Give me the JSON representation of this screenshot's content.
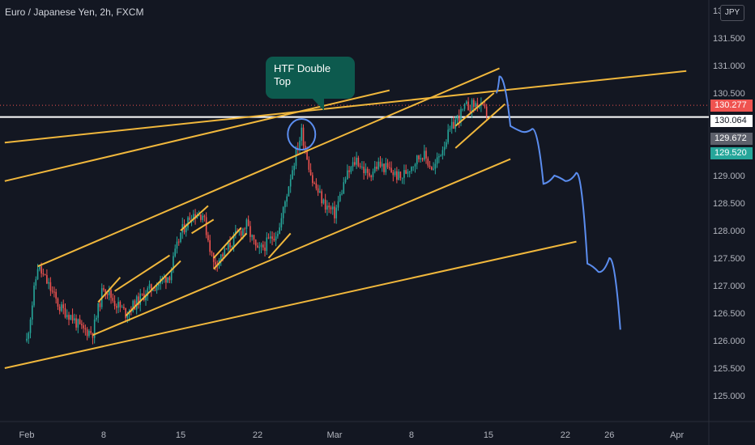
{
  "header": {
    "title": "Euro / Japanese Yen, 2h, FXCM"
  },
  "currency_button": {
    "label": "JPY"
  },
  "annotation": {
    "line1": "HTF Double",
    "line2": "Top"
  },
  "colors": {
    "background": "#131722",
    "up_candle": "#26a69a",
    "down_candle": "#ef5350",
    "trendline": "#f0b73c",
    "projection": "#5b8def",
    "annotation_bg": "#0d5a4e"
  },
  "price_badges": [
    {
      "value": "130.277",
      "price": 130.277,
      "bg": "#ef5350",
      "fg": "#ffffff"
    },
    {
      "value": "130.064",
      "price": 130.064,
      "bg": "#ffffff",
      "fg": "#131722"
    },
    {
      "value": "129.672",
      "price": 129.672,
      "bg": "#5d606b",
      "fg": "#ffffff"
    },
    {
      "value": "129.520",
      "price": 129.52,
      "bg": "#26a69a",
      "fg": "#ffffff"
    }
  ],
  "chart_data": {
    "type": "candlestick",
    "symbol": "Euro / Japanese Yen, 2h, FXCM",
    "y_ticks": [
      "131.500",
      "131.000",
      "130.500",
      "129.000",
      "128.500",
      "128.000",
      "127.500",
      "127.000",
      "126.500",
      "126.000",
      "125.500",
      "125.000"
    ],
    "y_top_partial": "13",
    "x_ticks": [
      "Feb",
      "8",
      "15",
      "22",
      "Mar",
      "8",
      "15",
      "22",
      "26",
      "Apr"
    ],
    "ylim": [
      124.6,
      131.9
    ],
    "price_path": [
      [
        "Feb 1",
        126.0
      ],
      [
        "Feb 2",
        127.35
      ],
      [
        "Feb 3",
        127.0
      ],
      [
        "Feb 4",
        126.6
      ],
      [
        "Feb 5",
        126.45
      ],
      [
        "Feb 6",
        126.2
      ],
      [
        "Feb 7",
        126.15
      ],
      [
        "Feb 8",
        127.0
      ],
      [
        "Feb 9",
        126.7
      ],
      [
        "Feb 10",
        126.5
      ],
      [
        "Feb 11",
        126.7
      ],
      [
        "Feb 12",
        126.9
      ],
      [
        "Feb 13",
        127.05
      ],
      [
        "Feb 14",
        127.2
      ],
      [
        "Feb 15",
        127.95
      ],
      [
        "Feb 16",
        128.3
      ],
      [
        "Feb 17",
        128.3
      ],
      [
        "Feb 18",
        127.4
      ],
      [
        "Feb 19",
        127.6
      ],
      [
        "Feb 20",
        127.9
      ],
      [
        "Feb 21",
        128.1
      ],
      [
        "Feb 22",
        127.6
      ],
      [
        "Feb 23",
        127.8
      ],
      [
        "Feb 24",
        128.05
      ],
      [
        "Feb 25",
        129.0
      ],
      [
        "Feb 26",
        129.8
      ],
      [
        "Feb 27",
        128.9
      ],
      [
        "Feb 28",
        128.5
      ],
      [
        "Mar 1",
        128.3
      ],
      [
        "Mar 2",
        128.95
      ],
      [
        "Mar 3",
        129.3
      ],
      [
        "Mar 4",
        129.0
      ],
      [
        "Mar 5",
        129.2
      ],
      [
        "Mar 6",
        129.1
      ],
      [
        "Mar 7",
        128.95
      ],
      [
        "Mar 8",
        129.2
      ],
      [
        "Mar 9",
        129.4
      ],
      [
        "Mar 10",
        129.1
      ],
      [
        "Mar 11",
        129.6
      ],
      [
        "Mar 12",
        130.0
      ],
      [
        "Mar 13",
        130.25
      ],
      [
        "Mar 14",
        130.3
      ],
      [
        "Mar 15",
        130.1
      ]
    ],
    "projection": [
      [
        "Mar 16",
        130.5
      ],
      [
        "Mar 16",
        130.8
      ],
      [
        "Mar 17",
        129.9
      ],
      [
        "Mar 18",
        129.8
      ],
      [
        "Mar 19",
        129.85
      ],
      [
        "Mar 20",
        128.85
      ],
      [
        "Mar 21",
        129.0
      ],
      [
        "Mar 22",
        128.9
      ],
      [
        "Mar 23",
        129.05
      ],
      [
        "Mar 24",
        127.4
      ],
      [
        "Mar 25",
        127.25
      ],
      [
        "Mar 26",
        127.5
      ],
      [
        "Mar 27",
        126.2
      ]
    ],
    "trendlines": [
      {
        "from": [
          "Feb 2",
          127.35
        ],
        "to": [
          "Mar 16",
          130.95
        ]
      },
      {
        "from": [
          "Feb 7",
          126.1
        ],
        "to": [
          "Mar 17",
          129.3
        ]
      },
      {
        "from": [
          "Jan 30",
          125.5
        ],
        "to": [
          "Mar 23",
          127.8
        ]
      },
      {
        "from": [
          "Jan 30",
          128.9
        ],
        "to": [
          "Mar 6",
          130.55
        ]
      },
      {
        "from": [
          "Jan 30",
          129.6
        ],
        "to": [
          "Apr 2",
          130.9
        ]
      }
    ],
    "horizontal_line": 130.064,
    "dotted_line": 130.277,
    "annotation_circle": [
      "Feb 26",
      129.75
    ]
  }
}
